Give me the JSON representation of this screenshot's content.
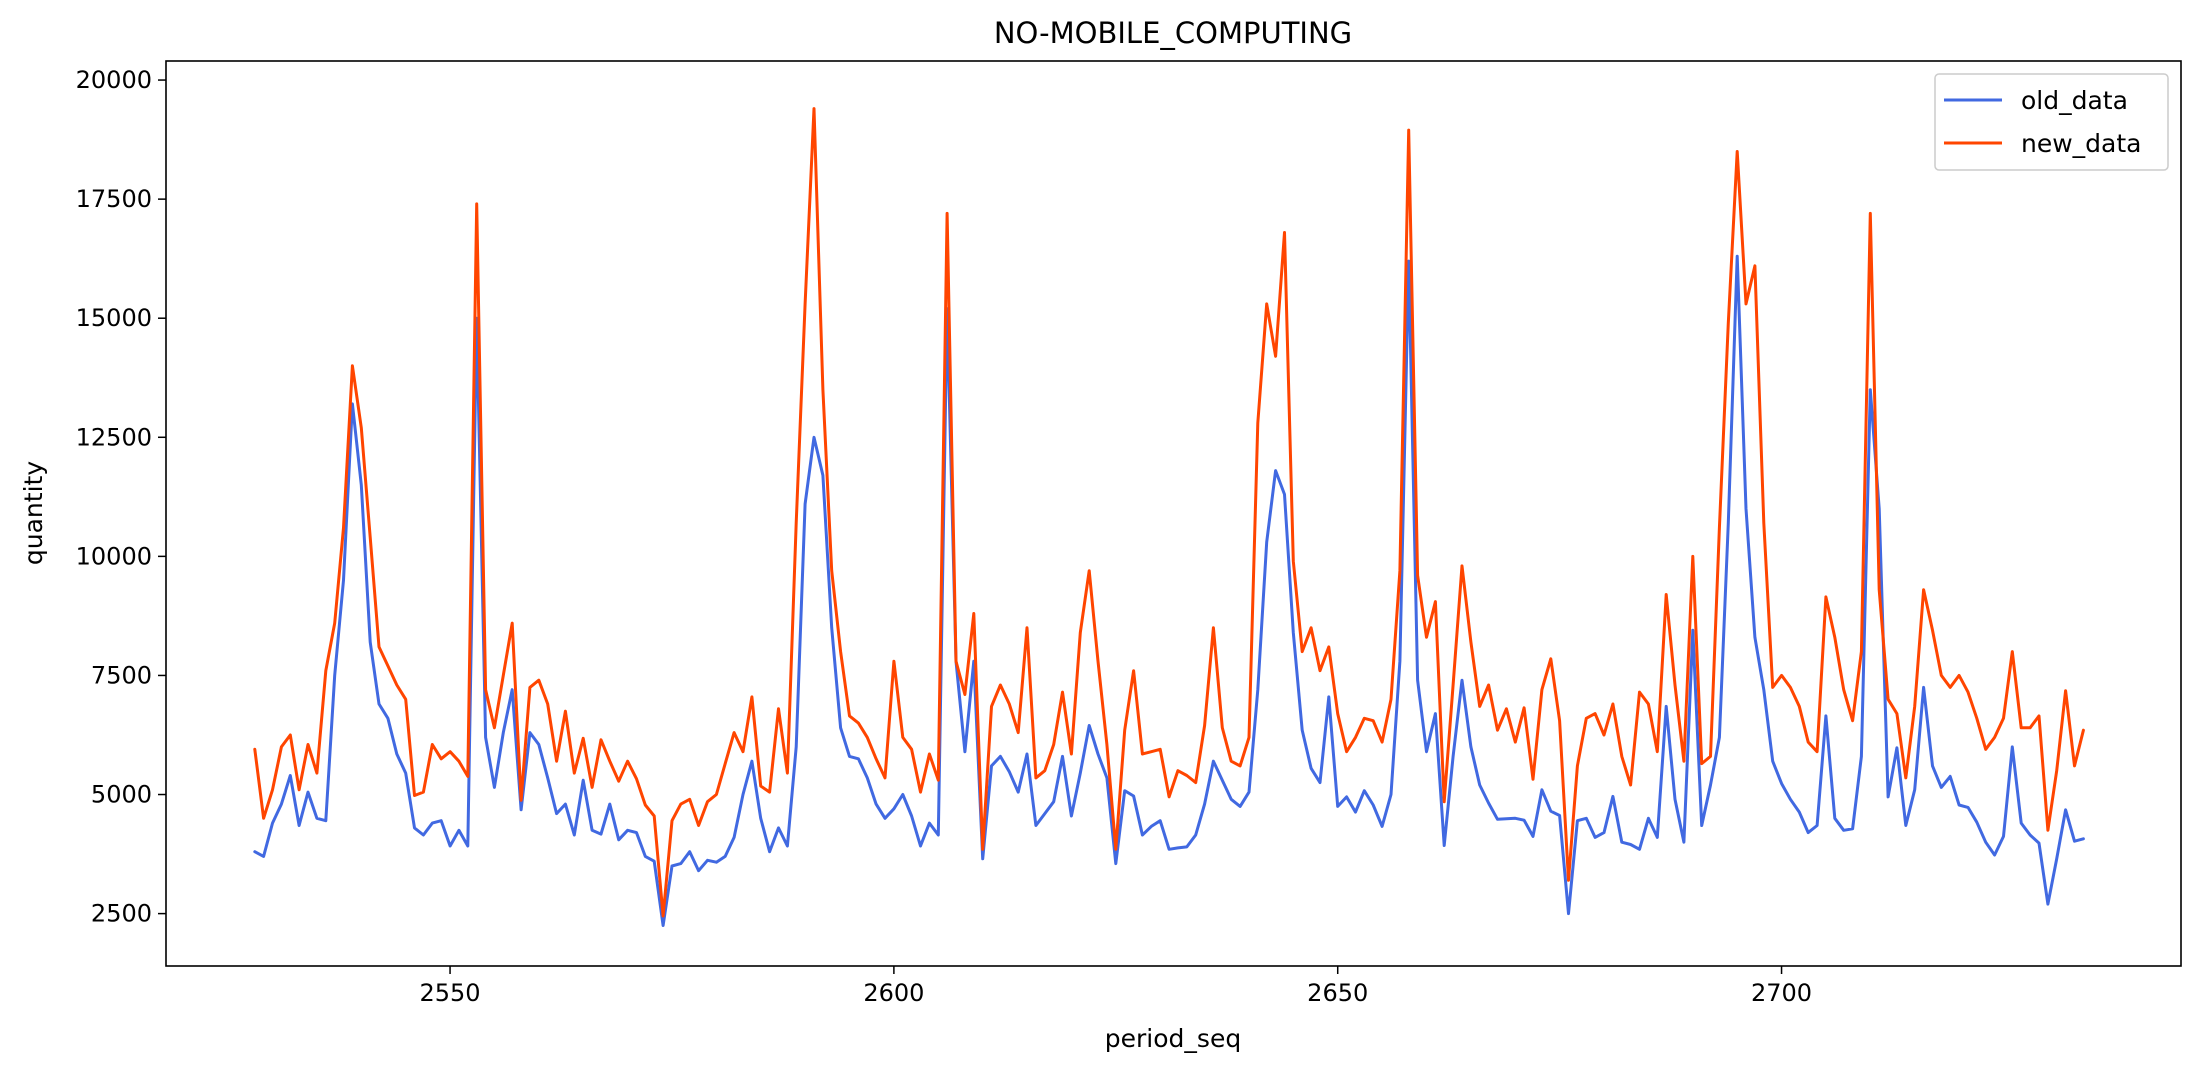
{
  "chart_data": {
    "type": "line",
    "title": "NO-MOBILE_COMPUTING",
    "xlabel": "period_seq",
    "ylabel": "quantity",
    "xlim": [
      2518,
      2745
    ],
    "ylim": [
      1400,
      20400
    ],
    "x_ticks": [
      2550,
      2600,
      2650,
      2700
    ],
    "y_ticks": [
      2500,
      5000,
      7500,
      10000,
      12500,
      15000,
      17500,
      20000
    ],
    "x_start": 2528,
    "legend_position": "top-right",
    "grid": false,
    "series": [
      {
        "name": "old_data",
        "color": "#4169e1",
        "values": [
          3800,
          3700,
          4400,
          4800,
          5400,
          4350,
          5050,
          4500,
          4450,
          7500,
          9500,
          13200,
          11500,
          8200,
          6900,
          6600,
          5850,
          5450,
          4300,
          4150,
          4400,
          4450,
          3920,
          4250,
          3920,
          15000,
          6200,
          5150,
          6300,
          7200,
          4680,
          6300,
          6050,
          5350,
          4600,
          4800,
          4150,
          5300,
          4250,
          4170,
          4800,
          4050,
          4250,
          4200,
          3700,
          3600,
          2250,
          3500,
          3550,
          3800,
          3400,
          3620,
          3580,
          3700,
          4100,
          5000,
          5700,
          4500,
          3800,
          4300,
          3920,
          6000,
          11100,
          12500,
          11700,
          8500,
          6400,
          5800,
          5750,
          5350,
          4800,
          4500,
          4700,
          5000,
          4550,
          3920,
          4400,
          4150,
          15200,
          7800,
          5900,
          7800,
          3650,
          5600,
          5800,
          5480,
          5050,
          5850,
          4350,
          4600,
          4850,
          5800,
          4550,
          5450,
          6450,
          5850,
          5350,
          3550,
          5080,
          4970,
          4150,
          4330,
          4450,
          3850,
          3880,
          3900,
          4150,
          4800,
          5700,
          5300,
          4900,
          4750,
          5050,
          7200,
          10300,
          11800,
          11300,
          8400,
          6350,
          5550,
          5250,
          7050,
          4750,
          4950,
          4630,
          5080,
          4780,
          4330,
          5000,
          7800,
          16200,
          7400,
          5900,
          6700,
          3930,
          5800,
          7400,
          6000,
          5200,
          4820,
          4480,
          4490,
          4500,
          4460,
          4120,
          5100,
          4650,
          4560,
          2500,
          4450,
          4500,
          4100,
          4200,
          4960,
          4000,
          3950,
          3850,
          4500,
          4100,
          6850,
          4900,
          4000,
          8450,
          4350,
          5200,
          6200,
          10700,
          16300,
          11000,
          8300,
          7200,
          5700,
          5230,
          4900,
          4630,
          4200,
          4350,
          6650,
          4500,
          4250,
          4280,
          5800,
          13500,
          11000,
          4950,
          5980,
          4350,
          5100,
          7250,
          5600,
          5150,
          5380,
          4780,
          4730,
          4420,
          4000,
          3730,
          4120,
          6000,
          4400,
          4150,
          3980,
          2700,
          3650,
          4680,
          4020,
          4070
        ]
      },
      {
        "name": "new_data",
        "color": "#ff4500",
        "values": [
          5950,
          4500,
          5100,
          6000,
          6250,
          5100,
          6050,
          5450,
          7600,
          8600,
          10600,
          14000,
          12700,
          10400,
          8100,
          7700,
          7300,
          7000,
          4980,
          5050,
          6050,
          5750,
          5900,
          5700,
          5380,
          17400,
          7200,
          6400,
          7500,
          8600,
          4880,
          7250,
          7400,
          6900,
          5700,
          6750,
          5450,
          6180,
          5150,
          6150,
          5700,
          5280,
          5700,
          5330,
          4780,
          4550,
          2450,
          4450,
          4800,
          4900,
          4350,
          4850,
          5000,
          5650,
          6300,
          5900,
          7050,
          5180,
          5050,
          6800,
          5450,
          10700,
          15300,
          19400,
          13500,
          9700,
          8000,
          6650,
          6500,
          6200,
          5750,
          5350,
          7800,
          6200,
          5950,
          5050,
          5850,
          5300,
          17200,
          7800,
          7100,
          8800,
          3850,
          6850,
          7300,
          6900,
          6300,
          8500,
          5350,
          5500,
          6050,
          7150,
          5850,
          8400,
          9700,
          7800,
          6050,
          3850,
          6350,
          7600,
          5850,
          5900,
          5950,
          4950,
          5500,
          5400,
          5250,
          6450,
          8500,
          6400,
          5700,
          5600,
          6200,
          12800,
          15300,
          14200,
          16800,
          9900,
          8000,
          8500,
          7600,
          8100,
          6700,
          5900,
          6200,
          6600,
          6550,
          6100,
          7000,
          9700,
          18950,
          9600,
          8300,
          9050,
          4850,
          7300,
          9800,
          8200,
          6850,
          7300,
          6350,
          6800,
          6100,
          6820,
          5320,
          7200,
          7850,
          6550,
          3200,
          5600,
          6600,
          6700,
          6250,
          6900,
          5800,
          5200,
          7150,
          6900,
          5900,
          9200,
          7300,
          5700,
          10000,
          5650,
          5800,
          10600,
          14900,
          18500,
          15300,
          16100,
          10700,
          7250,
          7500,
          7250,
          6850,
          6100,
          5900,
          9150,
          8300,
          7200,
          6550,
          8000,
          17200,
          9300,
          7000,
          6700,
          5350,
          6850,
          9300,
          8450,
          7500,
          7250,
          7500,
          7150,
          6600,
          5950,
          6200,
          6600,
          8000,
          6400,
          6400,
          6650,
          4250,
          5500,
          7180,
          5600,
          6350
        ]
      }
    ]
  }
}
